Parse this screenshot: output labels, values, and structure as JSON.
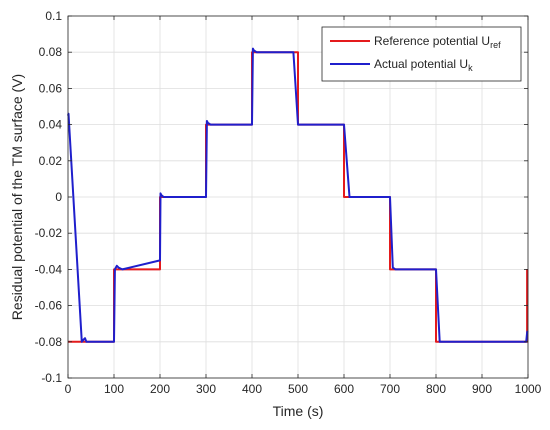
{
  "chart_data": {
    "type": "line",
    "title": "",
    "xlabel": "Time (s)",
    "ylabel": "Residual potential of the TM surface (V)",
    "xlim": [
      0,
      1000
    ],
    "ylim": [
      -0.1,
      0.1
    ],
    "xticks": [
      0,
      100,
      200,
      300,
      400,
      500,
      600,
      700,
      800,
      900,
      1000
    ],
    "yticks": [
      -0.1,
      -0.08,
      -0.06,
      -0.04,
      -0.02,
      0,
      0.02,
      0.04,
      0.06,
      0.08,
      0.1
    ],
    "xtick_labels": [
      "0",
      "100",
      "200",
      "300",
      "400",
      "500",
      "600",
      "700",
      "800",
      "900",
      "1000"
    ],
    "ytick_labels": [
      "-0.1",
      "-0.08",
      "-0.06",
      "-0.04",
      "-0.02",
      "0",
      "0.02",
      "0.04",
      "0.06",
      "0.08",
      "0.1"
    ],
    "grid": true,
    "legend_position": "top-right",
    "series": [
      {
        "name": "Reference potential U",
        "name_subscript": "ref",
        "color": "#e41a1c",
        "x": [
          0,
          100,
          100,
          200,
          200,
          300,
          300,
          400,
          400,
          500,
          500,
          600,
          600,
          700,
          700,
          800,
          800,
          998,
          998
        ],
        "y": [
          -0.08,
          -0.08,
          -0.04,
          -0.04,
          0,
          0,
          0.04,
          0.04,
          0.08,
          0.08,
          0.04,
          0.04,
          0,
          0,
          -0.04,
          -0.04,
          -0.08,
          -0.08,
          -0.04
        ]
      },
      {
        "name": "Actual potential U",
        "name_subscript": "k",
        "color": "#1f1fcc",
        "x": [
          0,
          1,
          30,
          33,
          37,
          40,
          100,
          102,
          106,
          110,
          118,
          200,
          201,
          203,
          208,
          300,
          302,
          304,
          310,
          400,
          402,
          404,
          410,
          490,
          500,
          600,
          612,
          700,
          706,
          712,
          800,
          808,
          815,
          996,
          998,
          999
        ],
        "y": [
          0.045,
          0.046,
          -0.08,
          -0.079,
          -0.078,
          -0.08,
          -0.08,
          -0.04,
          -0.038,
          -0.039,
          -0.04,
          -0.035,
          0.002,
          0.001,
          0,
          0,
          0.042,
          0.041,
          0.04,
          0.04,
          0.082,
          0.081,
          0.08,
          0.08,
          0.04,
          0.04,
          0,
          0,
          -0.039,
          -0.04,
          -0.04,
          -0.08,
          -0.08,
          -0.08,
          -0.075,
          -0.074
        ]
      }
    ]
  }
}
